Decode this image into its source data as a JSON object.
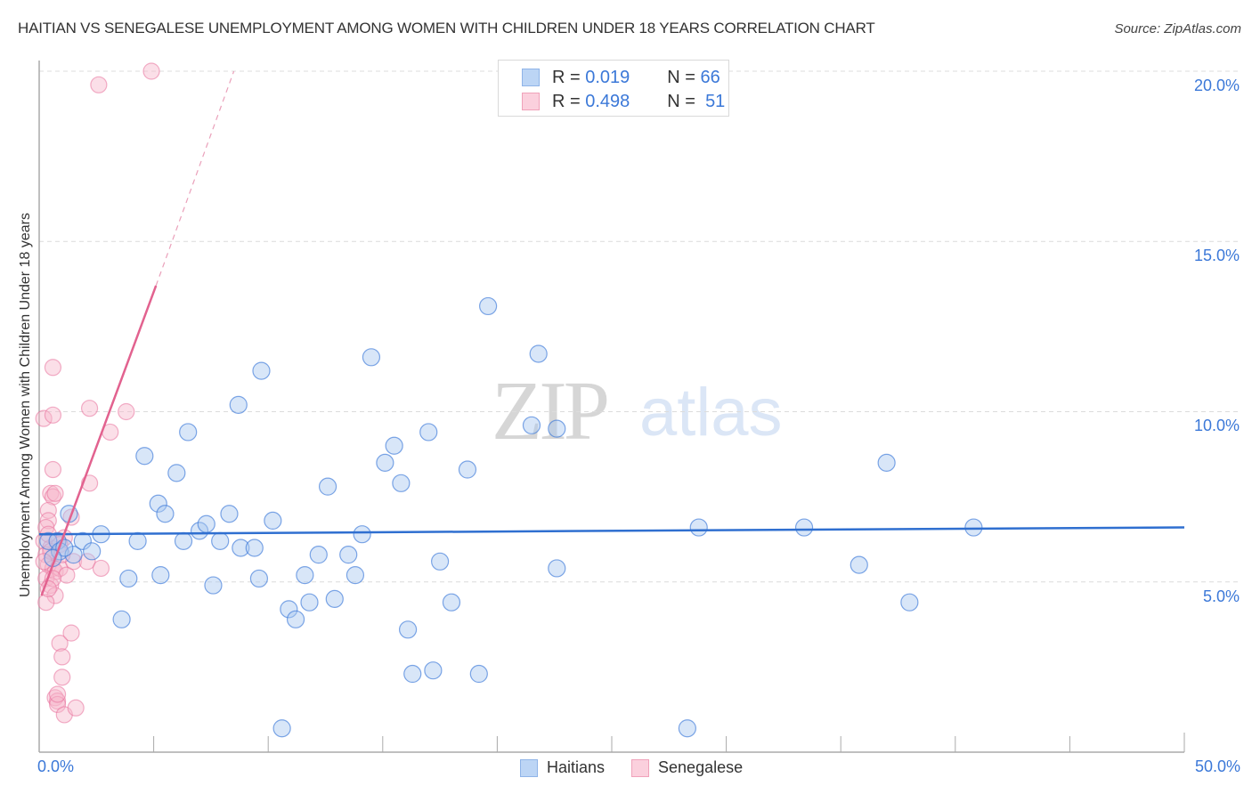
{
  "header": {
    "title": "HAITIAN VS SENEGALESE UNEMPLOYMENT AMONG WOMEN WITH CHILDREN UNDER 18 YEARS CORRELATION CHART",
    "source": "Source: ZipAtlas.com"
  },
  "watermark": {
    "zip": "ZIP",
    "atlas": "atlas"
  },
  "legend": {
    "rows": [
      {
        "r_label": "R =",
        "r_value": "0.019",
        "n_label": "N =",
        "n_value": "66",
        "color": "#a9c8f0"
      },
      {
        "r_label": "R =",
        "r_value": "0.498",
        "n_label": "N =",
        "n_value": "51",
        "color": "#f7b9cc"
      }
    ]
  },
  "bottom_legend": {
    "items": [
      {
        "label": "Haitians"
      },
      {
        "label": "Senegalese"
      }
    ]
  },
  "axes": {
    "ylabel": "Unemployment Among Women with Children Under 18 years",
    "yticks": [
      "20.0%",
      "15.0%",
      "10.0%",
      "5.0%"
    ],
    "xticks": [
      "0.0%",
      "50.0%"
    ]
  },
  "colors": {
    "blue": "#3b78d8",
    "blue_fill": "#a9c8f0",
    "pink": "#e8709a",
    "pink_fill": "#f7b9cc",
    "grid": "#dddddd"
  },
  "chart_data": {
    "type": "scatter",
    "title": "HAITIAN VS SENEGALESE UNEMPLOYMENT AMONG WOMEN WITH CHILDREN UNDER 18 YEARS CORRELATION CHART",
    "xlabel": "",
    "ylabel": "Unemployment Among Women with Children Under 18 years",
    "xlim": [
      0,
      50
    ],
    "ylim": [
      0,
      20
    ],
    "grid": true,
    "legend_position": "top-center",
    "series": [
      {
        "name": "Haitians",
        "r": 0.019,
        "n": 66,
        "trend": {
          "x": [
            0,
            50
          ],
          "y": [
            6.4,
            6.6
          ]
        },
        "points": [
          [
            0.4,
            6.2
          ],
          [
            0.8,
            6.2
          ],
          [
            0.9,
            5.9
          ],
          [
            1.3,
            7.0
          ],
          [
            1.5,
            5.8
          ],
          [
            1.9,
            6.2
          ],
          [
            2.3,
            5.9
          ],
          [
            2.7,
            6.4
          ],
          [
            3.6,
            3.9
          ],
          [
            3.9,
            5.1
          ],
          [
            4.3,
            6.2
          ],
          [
            4.6,
            8.7
          ],
          [
            5.2,
            7.3
          ],
          [
            5.3,
            5.2
          ],
          [
            5.5,
            7.0
          ],
          [
            6.0,
            8.2
          ],
          [
            6.3,
            6.2
          ],
          [
            6.5,
            9.4
          ],
          [
            7.0,
            6.5
          ],
          [
            7.3,
            6.7
          ],
          [
            7.6,
            4.9
          ],
          [
            7.9,
            6.2
          ],
          [
            8.3,
            7.0
          ],
          [
            8.7,
            10.2
          ],
          [
            8.8,
            6.0
          ],
          [
            9.4,
            6.0
          ],
          [
            9.6,
            5.1
          ],
          [
            9.7,
            11.2
          ],
          [
            10.2,
            6.8
          ],
          [
            10.6,
            0.7
          ],
          [
            10.9,
            4.2
          ],
          [
            11.2,
            3.9
          ],
          [
            11.6,
            5.2
          ],
          [
            11.8,
            4.4
          ],
          [
            12.2,
            5.8
          ],
          [
            12.6,
            7.8
          ],
          [
            12.9,
            4.5
          ],
          [
            13.5,
            5.8
          ],
          [
            13.8,
            5.2
          ],
          [
            14.1,
            6.4
          ],
          [
            14.5,
            11.6
          ],
          [
            15.1,
            8.5
          ],
          [
            15.5,
            9.0
          ],
          [
            15.8,
            7.9
          ],
          [
            16.1,
            3.6
          ],
          [
            16.3,
            2.3
          ],
          [
            17.0,
            9.4
          ],
          [
            17.2,
            2.4
          ],
          [
            17.5,
            5.6
          ],
          [
            18.0,
            4.4
          ],
          [
            18.7,
            8.3
          ],
          [
            19.2,
            2.3
          ],
          [
            19.6,
            13.1
          ],
          [
            21.5,
            9.6
          ],
          [
            21.8,
            11.7
          ],
          [
            22.6,
            9.5
          ],
          [
            22.6,
            5.4
          ],
          [
            28.3,
            0.7
          ],
          [
            28.8,
            6.6
          ],
          [
            33.4,
            6.6
          ],
          [
            35.8,
            5.5
          ],
          [
            37.0,
            8.5
          ],
          [
            38.0,
            4.4
          ],
          [
            40.8,
            6.6
          ],
          [
            1.1,
            6.0
          ],
          [
            0.6,
            5.7
          ]
        ]
      },
      {
        "name": "Senegalese",
        "r": 0.498,
        "n": 51,
        "trend": {
          "x": [
            0.1,
            5.1
          ],
          "y": [
            4.6,
            13.7
          ],
          "dashed_extension": {
            "x": [
              5.1,
              8.5
            ],
            "y": [
              13.7,
              20.0
            ]
          }
        },
        "points": [
          [
            2.6,
            19.6
          ],
          [
            4.9,
            20.0
          ],
          [
            0.6,
            11.3
          ],
          [
            0.2,
            9.8
          ],
          [
            0.6,
            9.9
          ],
          [
            2.2,
            10.1
          ],
          [
            3.1,
            9.4
          ],
          [
            3.8,
            10.0
          ],
          [
            0.6,
            8.3
          ],
          [
            2.2,
            7.9
          ],
          [
            0.5,
            7.6
          ],
          [
            0.6,
            7.5
          ],
          [
            0.7,
            7.6
          ],
          [
            0.4,
            7.1
          ],
          [
            0.4,
            6.8
          ],
          [
            1.4,
            6.9
          ],
          [
            0.3,
            6.6
          ],
          [
            0.2,
            6.2
          ],
          [
            0.5,
            6.0
          ],
          [
            0.8,
            6.2
          ],
          [
            1.1,
            6.3
          ],
          [
            0.3,
            5.8
          ],
          [
            0.4,
            5.5
          ],
          [
            0.6,
            5.4
          ],
          [
            0.7,
            5.3
          ],
          [
            0.9,
            5.4
          ],
          [
            1.2,
            5.2
          ],
          [
            1.5,
            5.6
          ],
          [
            2.1,
            5.6
          ],
          [
            2.7,
            5.4
          ],
          [
            0.3,
            5.1
          ],
          [
            0.5,
            4.9
          ],
          [
            0.7,
            4.6
          ],
          [
            0.3,
            4.4
          ],
          [
            0.9,
            3.2
          ],
          [
            1.4,
            3.5
          ],
          [
            1.0,
            2.8
          ],
          [
            1.0,
            2.2
          ],
          [
            0.7,
            1.6
          ],
          [
            0.8,
            1.5
          ],
          [
            0.8,
            1.4
          ],
          [
            1.1,
            1.1
          ],
          [
            1.6,
            1.3
          ],
          [
            0.5,
            5.9
          ],
          [
            0.9,
            6.1
          ],
          [
            1.0,
            5.8
          ],
          [
            0.4,
            6.4
          ],
          [
            0.6,
            5.1
          ],
          [
            0.2,
            5.6
          ],
          [
            0.8,
            1.7
          ],
          [
            0.4,
            4.8
          ]
        ]
      }
    ]
  }
}
